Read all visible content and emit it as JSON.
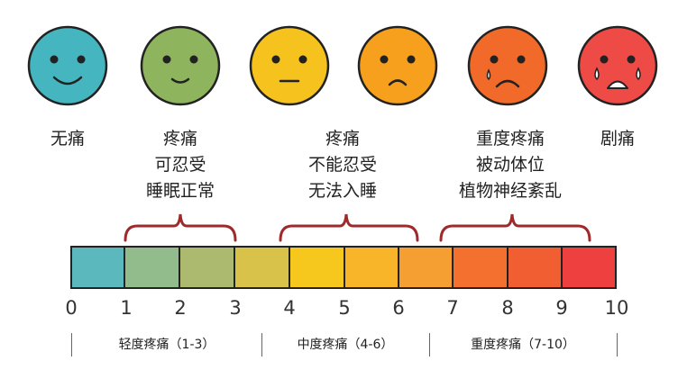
{
  "faces": [
    {
      "name": "no-pain",
      "color": "#45b5bf",
      "label_lines": [
        "无痛"
      ]
    },
    {
      "name": "mild-pain",
      "color": "#8fb45e",
      "label_lines": [
        "疼痛",
        "可忍受",
        "睡眠正常"
      ]
    },
    {
      "name": "neutral-pain",
      "color": "#f5c21e",
      "label_lines": []
    },
    {
      "name": "moderate-pain",
      "color": "#f7a01e",
      "label_lines": [
        "疼痛",
        "不能忍受",
        "无法入睡"
      ]
    },
    {
      "name": "severe-pain",
      "color": "#f26a2a",
      "label_lines": [
        "重度疼痛",
        "被动体位",
        "植物神经紊乱"
      ]
    },
    {
      "name": "worst-pain",
      "color": "#ee4b46",
      "label_lines": [
        "剧痛"
      ]
    }
  ],
  "scale": {
    "numbers": [
      "0",
      "1",
      "2",
      "3",
      "4",
      "5",
      "6",
      "7",
      "8",
      "9",
      "10"
    ],
    "segment_colors": [
      "#5bb8bd",
      "#92bc8c",
      "#abba6e",
      "#d8c24a",
      "#f6c71c",
      "#f8b52a",
      "#f59f33",
      "#f3702f",
      "#f05e32",
      "#ef4040"
    ]
  },
  "ranges": [
    {
      "label": "轻度疼痛（1-3）"
    },
    {
      "label": "中度疼痛（4-6）"
    },
    {
      "label": "重度疼痛（7-10）"
    }
  ],
  "colors": {
    "brace": "#9e2a2b",
    "outline": "#222222"
  }
}
